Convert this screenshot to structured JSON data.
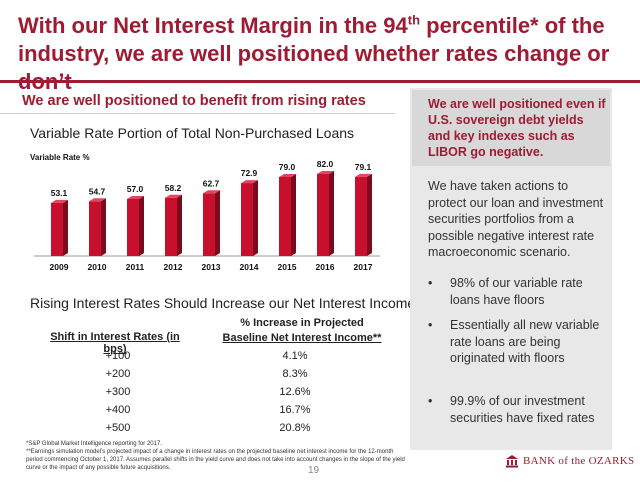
{
  "header": {
    "title_line1_pre": "With our Net Interest Margin in the 94",
    "title_sup": "th",
    "title_line1_post": " percentile* of the",
    "title_line2": "industry, we are well positioned whether rates change or don’t"
  },
  "left": {
    "heading": "We are well positioned to benefit from rising rates",
    "chart_title": "Variable Rate Portion of Total Non-Purchased Loans"
  },
  "chart_data": {
    "type": "bar",
    "title": "Variable Rate Portion of Total Non-Purchased Loans",
    "ylabel": "Variable Rate %",
    "categories": [
      "2009",
      "2010",
      "2011",
      "2012",
      "2013",
      "2014",
      "2015",
      "2016",
      "2017"
    ],
    "values": [
      53.1,
      54.7,
      57.0,
      58.2,
      62.7,
      72.9,
      79.0,
      82.0,
      79.1
    ],
    "value_labels": [
      "53.1",
      "54.7",
      "57.0",
      "58.2",
      "62.7",
      "72.9",
      "79.0",
      "82.0",
      "79.1"
    ],
    "ylim": [
      0,
      90
    ],
    "grid": false,
    "bar_color": "#c8102e"
  },
  "table": {
    "title": "Rising Interest Rates Should Increase our Net Interest Income",
    "col1_header": "Shift in Interest Rates (in bps)",
    "col2_header_line1": "% Increase in Projected",
    "col2_header_line2": "Baseline Net Interest Income**",
    "rows": [
      {
        "shift": "+100",
        "increase": "4.1%"
      },
      {
        "shift": "+200",
        "increase": "8.3%"
      },
      {
        "shift": "+300",
        "increase": "12.6%"
      },
      {
        "shift": "+400",
        "increase": "16.7%"
      },
      {
        "shift": "+500",
        "increase": "20.8%"
      }
    ]
  },
  "footnotes": {
    "f1": "*S&P Global Market Intelligence reporting for 2017.",
    "f2": "**Earnings simulation model’s projected impact of a change in interest rates on the projected baseline net interest income for the 12-month period commencing October 1, 2017. Assumes parallel shifts in the yield curve and does not take into account changes in the slope of the yield curve or the impact of any possible future acquisitions."
  },
  "side": {
    "heading": "We are well positioned even if U.S. sovereign debt yields and key indexes such as LIBOR go negative.",
    "paragraph": "We have taken actions to protect our loan and investment securities portfolios from a possible negative interest rate macroeconomic scenario.",
    "bullet_char": "•",
    "bullets": [
      "98% of our variable rate loans have floors",
      "Essentially all new variable rate loans are being originated with floors",
      "99.9% of our investment securities have fixed rates"
    ]
  },
  "footer": {
    "page_number": "19",
    "logo_text": "BANK of the OZARKS",
    "logo_icon": "bank-building-icon"
  },
  "colors": {
    "brand": "#9e1b32",
    "bar": "#c8102e",
    "side_bg": "#e8e8e8"
  }
}
